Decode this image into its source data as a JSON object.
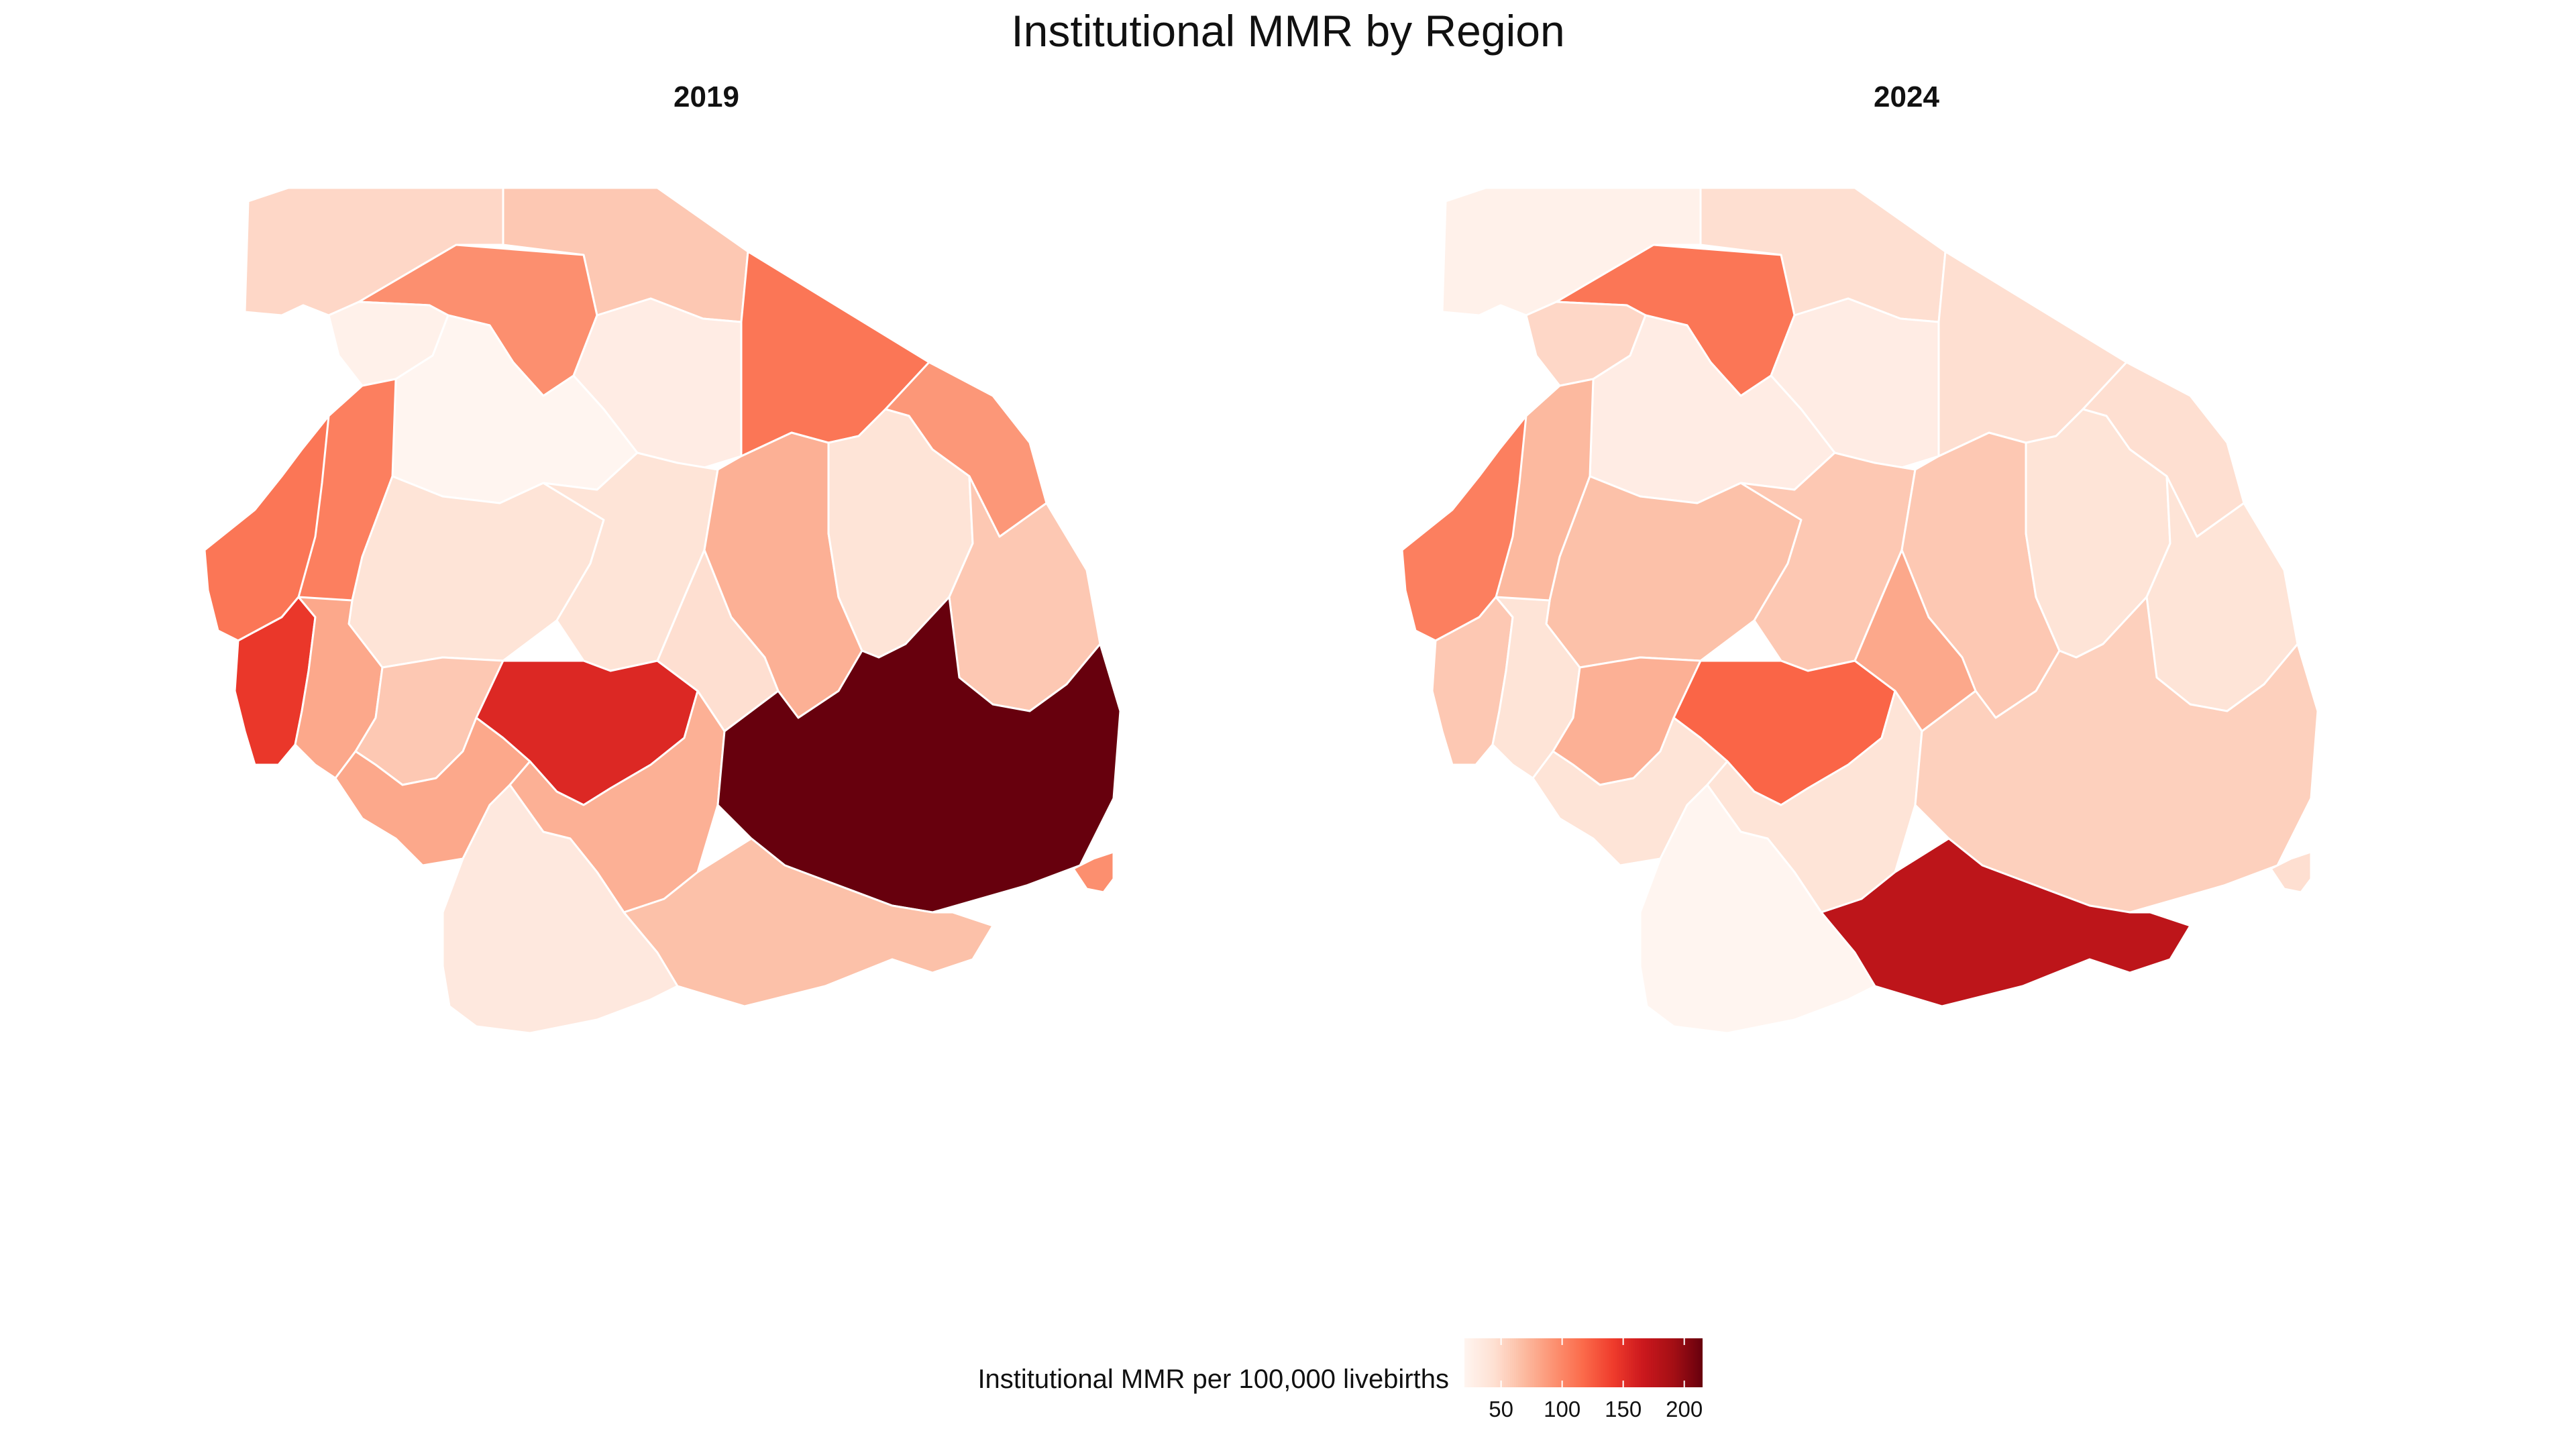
{
  "title": "Institutional MMR by Region",
  "panels": [
    {
      "year_label": "2019"
    },
    {
      "year_label": "2024"
    }
  ],
  "legend": {
    "title": "Institutional MMR per 100,000 livebirths",
    "ticks": [
      "50",
      "100",
      "150",
      "200"
    ],
    "tick_values": [
      50,
      100,
      150,
      200
    ],
    "range": [
      20,
      215
    ],
    "colors": [
      "#fff5f0",
      "#fee0d2",
      "#fcbba1",
      "#fc9272",
      "#fb6a4a",
      "#ef3b2c",
      "#cb181d",
      "#a50f15",
      "#67000d"
    ]
  },
  "chart_data": {
    "type": "choropleth",
    "title": "Institutional MMR by Region",
    "value_label": "Institutional MMR per 100,000 livebirths",
    "scale": "sequential reds",
    "legend_placement": "bottom",
    "facets": [
      "2019",
      "2024"
    ],
    "regions": [
      {
        "id": "r01",
        "values": {
          "2019": 50,
          "2024": 25
        }
      },
      {
        "id": "r02",
        "values": {
          "2019": 60,
          "2024": 45
        }
      },
      {
        "id": "r03",
        "values": {
          "2019": 95,
          "2024": 110
        }
      },
      {
        "id": "r04",
        "values": {
          "2019": 25,
          "2024": 50
        }
      },
      {
        "id": "r05",
        "values": {
          "2019": 30,
          "2024": 30
        }
      },
      {
        "id": "r06",
        "values": {
          "2019": 20,
          "2024": 30
        }
      },
      {
        "id": "r07",
        "values": {
          "2019": 110,
          "2024": 45
        }
      },
      {
        "id": "r08",
        "values": {
          "2019": 90,
          "2024": 45
        }
      },
      {
        "id": "r09",
        "values": {
          "2019": 105,
          "2024": 70
        }
      },
      {
        "id": "r10",
        "values": {
          "2019": 40,
          "2024": 65
        }
      },
      {
        "id": "r11",
        "values": {
          "2019": 40,
          "2024": 60
        }
      },
      {
        "id": "r12",
        "values": {
          "2019": 75,
          "2024": 60
        }
      },
      {
        "id": "r13",
        "values": {
          "2019": 40,
          "2024": 40
        }
      },
      {
        "id": "r14",
        "values": {
          "2019": 60,
          "2024": 40
        }
      },
      {
        "id": "r15",
        "values": {
          "2019": 110,
          "2024": 105
        }
      },
      {
        "id": "r16",
        "values": {
          "2019": 145,
          "2024": 60
        }
      },
      {
        "id": "r17",
        "values": {
          "2019": 80,
          "2024": 40
        }
      },
      {
        "id": "r18",
        "values": {
          "2019": 60,
          "2024": 75
        }
      },
      {
        "id": "r19",
        "values": {
          "2019": 155,
          "2024": 120
        }
      },
      {
        "id": "r20",
        "values": {
          "2019": 45,
          "2024": 80
        }
      },
      {
        "id": "r21",
        "values": {
          "2019": 80,
          "2024": 40
        }
      },
      {
        "id": "r22",
        "values": {
          "2019": 75,
          "2024": 40
        }
      },
      {
        "id": "r23",
        "values": {
          "2019": 215,
          "2024": 55
        }
      },
      {
        "id": "r24",
        "values": {
          "2019": 35,
          "2024": 20
        }
      },
      {
        "id": "r25",
        "values": {
          "2019": 65,
          "2024": 175
        }
      },
      {
        "id": "r26",
        "values": {
          "2019": 95,
          "2024": 45
        }
      }
    ]
  }
}
